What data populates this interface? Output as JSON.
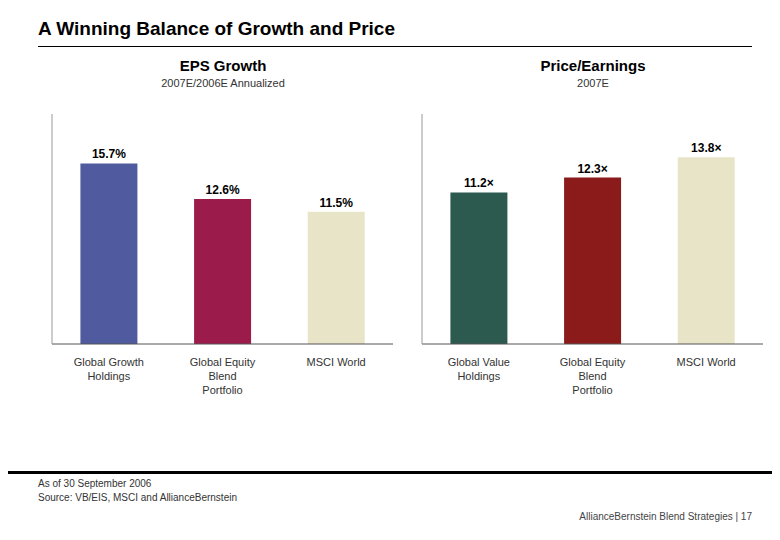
{
  "title": "A Winning Balance of Growth and Price",
  "annotations": [
    "As of 30 September 2006",
    "Source: VB/EIS, MSCI and AllianceBernstein",
    "AllianceBernstein Blend Strategies  |  17"
  ],
  "chart_data": [
    {
      "type": "bar",
      "title": "EPS Growth",
      "subtitle": "2007E/2006E Annualized",
      "categories": [
        "Global Growth\nHoldings",
        "Global Equity\nBlend\nPortfolio",
        "MSCI World"
      ],
      "values": [
        15.7,
        12.6,
        11.5
      ],
      "value_labels": [
        "15.7%",
        "12.6%",
        "11.5%"
      ],
      "colors": [
        "#4f5b9e",
        "#9b1b4b",
        "#e8e4c8"
      ],
      "ylim": [
        0,
        20
      ],
      "data_labels": true,
      "tick_labels": "x",
      "grid": false
    },
    {
      "type": "bar",
      "title": "Price/Earnings",
      "subtitle": "2007E",
      "categories": [
        "Global Value\nHoldings",
        "Global Equity\nBlend\nPortfolio",
        "MSCI World"
      ],
      "values": [
        11.2,
        12.3,
        13.8
      ],
      "value_labels": [
        "11.2×",
        "12.3×",
        "13.8×"
      ],
      "colors": [
        "#2d5a4e",
        "#8b1a1a",
        "#e8e4c8"
      ],
      "ylim": [
        0,
        17
      ],
      "data_labels": true,
      "tick_labels": "x",
      "grid": false
    }
  ]
}
